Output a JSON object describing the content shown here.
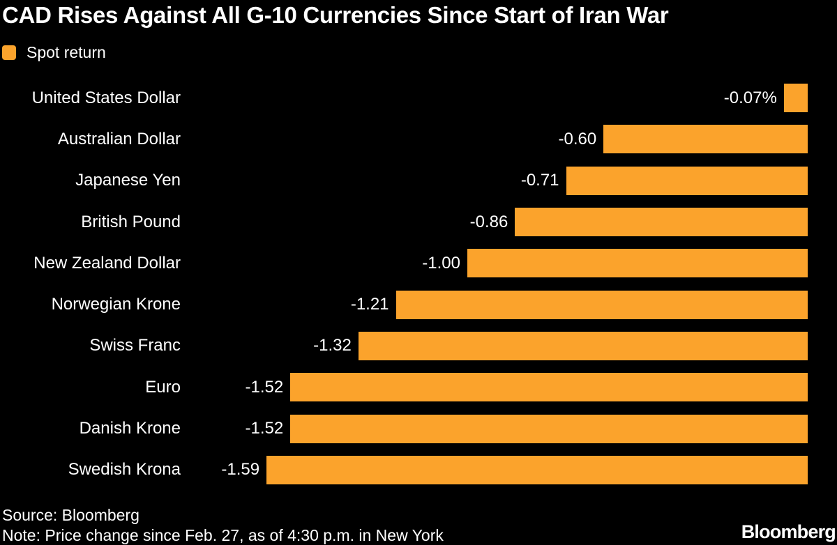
{
  "title": "CAD Rises Against All G-10 Currencies Since Start of Iran War",
  "legend": {
    "label": "Spot return"
  },
  "colors": {
    "background": "#000000",
    "bar": "#FBA32C",
    "text": "#FFFFFF"
  },
  "footer": {
    "source": "Source: Bloomberg",
    "note": "Note: Price change since Feb. 27, as of 4:30 p.m. in New York",
    "brand": "Bloomberg"
  },
  "chart_data": {
    "type": "bar",
    "orientation": "horizontal",
    "title": "CAD Rises Against All G-10 Currencies Since Start of Iran War",
    "series_name": "Spot return",
    "unit": "percent",
    "grid": false,
    "axes_hidden": true,
    "legend_position": "top-left",
    "bars_anchored": "right",
    "xlim": [
      -1.7,
      0
    ],
    "categories": [
      "United States Dollar",
      "Australian Dollar",
      "Japanese Yen",
      "British Pound",
      "New Zealand Dollar",
      "Norwegian Krone",
      "Swiss Franc",
      "Euro",
      "Danish Krone",
      "Swedish Krona"
    ],
    "values": [
      -0.07,
      -0.6,
      -0.71,
      -0.86,
      -1.0,
      -1.21,
      -1.32,
      -1.52,
      -1.52,
      -1.59
    ],
    "value_labels": [
      "-0.07%",
      "-0.60",
      "-0.71",
      "-0.86",
      "-1.00",
      "-1.21",
      "-1.32",
      "-1.52",
      "-1.52",
      "-1.59"
    ],
    "bar_color": "#FBA32C"
  }
}
